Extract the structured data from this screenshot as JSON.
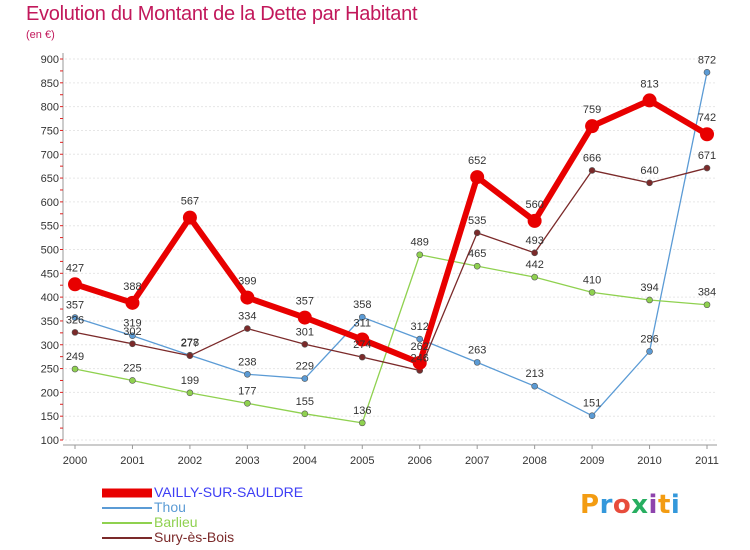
{
  "title": "Evolution du Montant de la Dette par Habitant",
  "subtitle": "(en €)",
  "logo": {
    "text": "Proxiti",
    "colors": [
      "#f39c12",
      "#3498db",
      "#e74c3c",
      "#27ae60",
      "#8e44ad",
      "#f39c12",
      "#3498db"
    ]
  },
  "chart_data": {
    "type": "line",
    "x": [
      "2000",
      "2001",
      "2002",
      "2003",
      "2004",
      "2005",
      "2006",
      "2007",
      "2008",
      "2009",
      "2010",
      "2011"
    ],
    "yticks": [
      "100",
      "150",
      "200",
      "250",
      "300",
      "350",
      "400",
      "450",
      "500",
      "550",
      "600",
      "650",
      "700",
      "750",
      "800",
      "850",
      "900"
    ],
    "ylim": [
      100,
      900
    ],
    "grid": "horizontal",
    "legend_position": "bottom-left",
    "series": [
      {
        "name": "VAILLY-SUR-SAULDRE",
        "color": "#e80000",
        "width": 6,
        "marker": 7,
        "values": [
          427,
          388,
          567,
          399,
          357,
          311,
          262,
          652,
          560,
          759,
          813,
          742
        ]
      },
      {
        "name": "Thou",
        "color": "#5b9bd5",
        "width": 1.3,
        "marker": 3,
        "values": [
          357,
          319,
          278,
          238,
          229,
          358,
          312,
          263,
          213,
          151,
          286,
          872
        ]
      },
      {
        "name": "Barlieu",
        "color": "#8fd14f",
        "width": 1.3,
        "marker": 3,
        "values": [
          249,
          225,
          199,
          177,
          155,
          136,
          489,
          465,
          442,
          410,
          394,
          384
        ]
      },
      {
        "name": "Sury-ès-Bois",
        "color": "#7b2a2a",
        "width": 1.3,
        "marker": 3,
        "values": [
          326,
          302,
          277,
          334,
          301,
          274,
          246,
          535,
          493,
          666,
          640,
          671
        ]
      }
    ]
  }
}
